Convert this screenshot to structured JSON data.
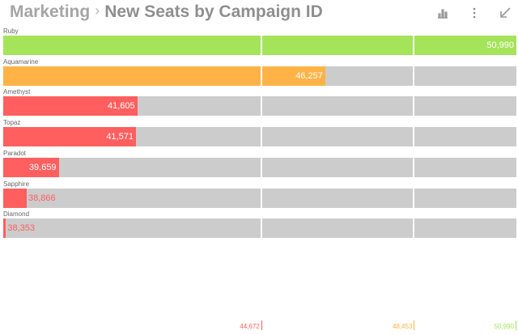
{
  "header": {
    "breadcrumb": "Marketing",
    "separator": "›",
    "title": "New Seats by Campaign ID",
    "icons": [
      "bar-chart-icon",
      "more-vertical-icon",
      "collapse-icon"
    ]
  },
  "colors": {
    "track": "#cccccc",
    "red": "#ff5f5f",
    "orange": "#ffb347",
    "green": "#a5e35a"
  },
  "chart_data": {
    "type": "bar",
    "orientation": "horizontal",
    "categories": [
      "Ruby",
      "Aquamarine",
      "Amethyst",
      "Topaz",
      "Paradot",
      "Sapphire",
      "Diamond"
    ],
    "values": [
      50990,
      46257,
      41605,
      41571,
      39659,
      38866,
      38353
    ],
    "value_labels": [
      "50,990",
      "46,257",
      "41,605",
      "41,571",
      "39,659",
      "38,866",
      "38,353"
    ],
    "xlim": [
      38285,
      50990
    ],
    "thresholds": [
      {
        "value": 44672,
        "label": "44,672",
        "color": "#ff5f5f"
      },
      {
        "value": 48453,
        "label": "48,453",
        "color": "#ffb347"
      },
      {
        "value": 50990,
        "label": "50,990",
        "color": "#a5e35a"
      }
    ],
    "grid": true,
    "legend": "none"
  }
}
